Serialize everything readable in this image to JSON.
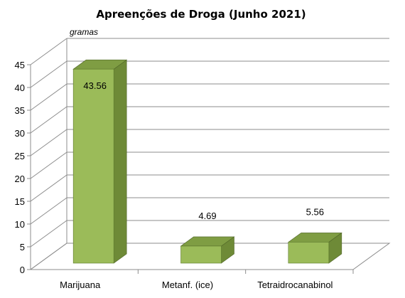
{
  "chart_data": {
    "type": "bar",
    "title": "Apreenções de Droga (Junho 2021)",
    "unit_label": "gramas",
    "categories": [
      "Marijuana",
      "Metanf. (ice)",
      "Tetraidrocanabinol"
    ],
    "values": [
      43.56,
      4.69,
      5.56
    ],
    "data_labels": [
      "43.56",
      "4.69",
      "5.56"
    ],
    "ylim": [
      0,
      45
    ],
    "yticks": [
      0,
      5,
      10,
      15,
      20,
      25,
      30,
      35,
      40,
      45
    ],
    "grid": true,
    "legend": false,
    "colors": {
      "front": "#9bbb59",
      "side": "#6e8a37",
      "top": "#7f9d43",
      "grid": "#8c8c8c"
    }
  }
}
